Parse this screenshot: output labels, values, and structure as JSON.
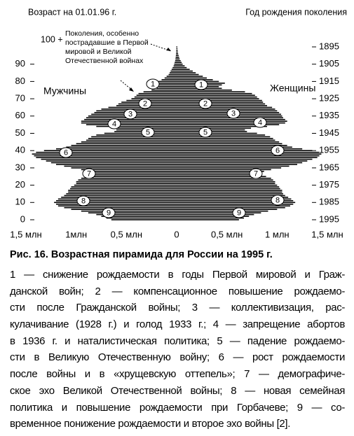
{
  "header": {
    "left": "Возраст на 01.01.96 г.",
    "right": "Год рождения поколения"
  },
  "chart_data": {
    "type": "pyramid",
    "ages": [
      0,
      1,
      2,
      3,
      4,
      5,
      6,
      7,
      8,
      9,
      10,
      11,
      12,
      13,
      14,
      15,
      16,
      17,
      18,
      19,
      20,
      21,
      22,
      23,
      24,
      25,
      26,
      27,
      28,
      29,
      30,
      31,
      32,
      33,
      34,
      35,
      36,
      37,
      38,
      39,
      40,
      41,
      42,
      43,
      44,
      45,
      46,
      47,
      48,
      49,
      50,
      51,
      52,
      53,
      54,
      55,
      56,
      57,
      58,
      59,
      60,
      61,
      62,
      63,
      64,
      65,
      66,
      67,
      68,
      69,
      70,
      71,
      72,
      73,
      74,
      75,
      76,
      77,
      78,
      79,
      80,
      81,
      82,
      83,
      84,
      85,
      86,
      87,
      88,
      89,
      90,
      91,
      92,
      93,
      94,
      95,
      96,
      97,
      98,
      99,
      100
    ],
    "series": [
      {
        "name": "Мужчины",
        "color": "#000000",
        "values": [
          0.65,
          0.7,
          0.75,
          0.8,
          0.88,
          0.95,
          1.05,
          1.12,
          1.18,
          1.2,
          1.22,
          1.2,
          1.18,
          1.15,
          1.12,
          1.1,
          1.08,
          1.08,
          1.06,
          1.05,
          1.02,
          1.0,
          1.0,
          0.98,
          0.95,
          0.9,
          0.86,
          0.84,
          0.88,
          0.95,
          1.05,
          1.12,
          1.2,
          1.25,
          1.3,
          1.35,
          1.4,
          1.42,
          1.44,
          1.4,
          1.32,
          1.2,
          1.1,
          1.05,
          1.0,
          0.95,
          0.9,
          0.88,
          0.85,
          0.8,
          0.72,
          0.62,
          0.6,
          0.65,
          0.8,
          0.9,
          0.95,
          0.95,
          0.92,
          0.9,
          0.88,
          0.85,
          0.82,
          0.8,
          0.75,
          0.68,
          0.6,
          0.58,
          0.55,
          0.5,
          0.45,
          0.42,
          0.4,
          0.38,
          0.33,
          0.25,
          0.2,
          0.18,
          0.2,
          0.22,
          0.18,
          0.15,
          0.12,
          0.1,
          0.08,
          0.07,
          0.06,
          0.05,
          0.04,
          0.03,
          0.025,
          0.02,
          0.015,
          0.012,
          0.01,
          0.008,
          0.006,
          0.005,
          0.004,
          0.003,
          0.003
        ]
      },
      {
        "name": "Женщины",
        "color": "#000000",
        "values": [
          0.62,
          0.67,
          0.72,
          0.77,
          0.84,
          0.91,
          1.0,
          1.08,
          1.13,
          1.16,
          1.18,
          1.16,
          1.14,
          1.11,
          1.08,
          1.06,
          1.05,
          1.05,
          1.03,
          1.02,
          1.0,
          0.98,
          0.98,
          0.96,
          0.94,
          0.89,
          0.85,
          0.83,
          0.87,
          0.94,
          1.04,
          1.12,
          1.2,
          1.25,
          1.3,
          1.35,
          1.4,
          1.42,
          1.44,
          1.42,
          1.35,
          1.25,
          1.15,
          1.1,
          1.05,
          1.02,
          0.98,
          0.96,
          0.93,
          0.88,
          0.8,
          0.7,
          0.68,
          0.74,
          0.9,
          1.02,
          1.08,
          1.1,
          1.08,
          1.06,
          1.05,
          1.04,
          1.02,
          1.0,
          0.98,
          0.95,
          0.9,
          0.88,
          0.86,
          0.85,
          0.82,
          0.8,
          0.78,
          0.75,
          0.68,
          0.55,
          0.45,
          0.42,
          0.45,
          0.48,
          0.42,
          0.36,
          0.3,
          0.26,
          0.22,
          0.19,
          0.16,
          0.13,
          0.1,
          0.08,
          0.06,
          0.05,
          0.04,
          0.03,
          0.025,
          0.02,
          0.015,
          0.012,
          0.01,
          0.008,
          0.006
        ]
      }
    ],
    "ylim": [
      0,
      100
    ],
    "yticks": [
      0,
      10,
      20,
      30,
      40,
      50,
      60,
      70,
      80,
      90
    ],
    "y2lim": [
      1995,
      1895
    ],
    "y2ticks": [
      1895,
      1905,
      1915,
      1925,
      1935,
      1945,
      1955,
      1965,
      1975,
      1985,
      1995
    ],
    "xlim": [
      -1.5,
      1.5
    ],
    "xticks": [
      {
        "value": -1.5,
        "label": "1,5 млн"
      },
      {
        "value": -1,
        "label": "1млн"
      },
      {
        "value": -0.5,
        "label": "0,5 млн"
      },
      0,
      {
        "value": 0.5,
        "label": "0,5 млн"
      },
      {
        "value": 1,
        "label": "1 млн"
      },
      {
        "value": 1.5,
        "label": "1,5 млн"
      }
    ],
    "top_age_label": "100 +",
    "annotation": [
      "Поколения, особенно",
      "пострадавшие в Первой",
      "мировой и Великой",
      "Отечественной войнах"
    ],
    "markers": [
      "1",
      "2",
      "3",
      "4",
      "5",
      "6",
      "7",
      "8",
      "9"
    ]
  },
  "caption": {
    "title": "Рис. 16.  Возрастная пирамида для России на 1995 г.",
    "lines": [
      "1 — снижение рождаемости в годы Первой мировой и Граж-",
      "данской войн; 2 — компенсационное повышение рождаемо-",
      "сти после Гражданской войны; 3 — коллективизация, рас-",
      "кулачивание (1928 г.) и голод 1933 г.; 4 — запрещение абортов",
      "в 1936 г. и наталистическая политика; 5 — падение рождаемо-",
      "сти в Великую Отечественную войну; 6 — рост рождаемости",
      "после войны и в «хрущевскую оттепель»; 7 — демографиче-",
      "ское эхо Великой Отечественной войны; 8 — новая семейная",
      "политика и повышение рождаемости при Горбачеве; 9 — со-",
      "временное понижение рождаемости и второе эхо войны [2]."
    ]
  }
}
